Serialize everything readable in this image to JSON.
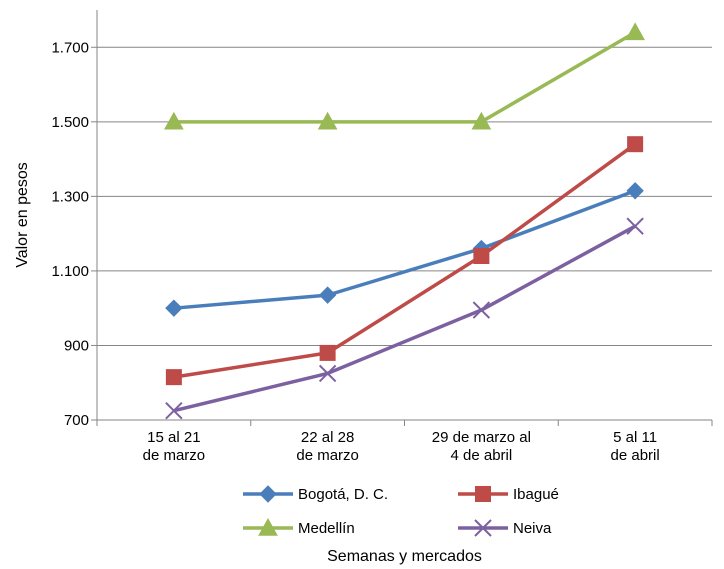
{
  "chart_data": {
    "type": "line",
    "title": "",
    "xlabel": "Semanas y mercados",
    "ylabel": "Valor en pesos",
    "ylim": [
      700,
      1800
    ],
    "yticks": [
      700,
      900,
      1100,
      1300,
      1500,
      1700
    ],
    "ytick_labels": [
      "700",
      "900",
      "1.100",
      "1.300",
      "1.500",
      "1.700"
    ],
    "grid": true,
    "legend_position": "bottom",
    "categories": [
      [
        "15 al 21",
        "de marzo"
      ],
      [
        "22 al 28",
        "de marzo"
      ],
      [
        "29 de marzo al",
        "4 de abril"
      ],
      [
        "5 al 11",
        "de abril"
      ]
    ],
    "series": [
      {
        "name": "Bogotá, D. C.",
        "values": [
          1000,
          1035,
          1160,
          1315
        ],
        "color": "#4a7ebb",
        "marker": "diamond"
      },
      {
        "name": "Ibagué",
        "values": [
          815,
          880,
          1140,
          1440
        ],
        "color": "#be4b48",
        "marker": "square"
      },
      {
        "name": "Medellín",
        "values": [
          1500,
          1500,
          1500,
          1740
        ],
        "color": "#98b954",
        "marker": "triangle"
      },
      {
        "name": "Neiva",
        "values": [
          725,
          825,
          995,
          1220
        ],
        "color": "#7d60a0",
        "marker": "x"
      }
    ]
  }
}
